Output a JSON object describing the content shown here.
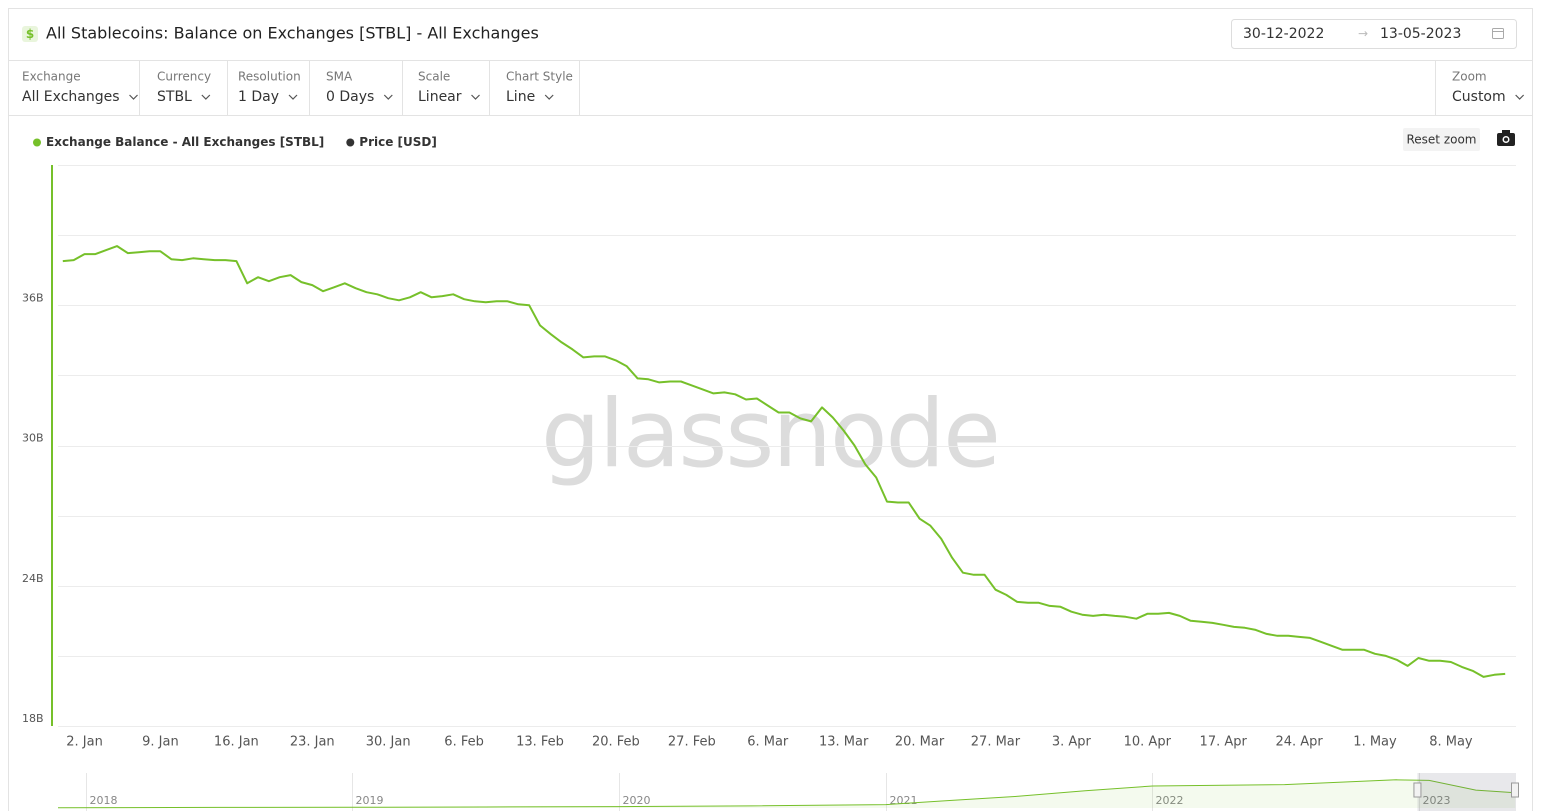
{
  "header": {
    "title": "All Stablecoins: Balance on Exchanges [STBL] - All Exchanges",
    "date_from": "30-12-2022",
    "date_to": "13-05-2023"
  },
  "controls": [
    {
      "label": "Exchange",
      "value": "All Exchanges"
    },
    {
      "label": "Currency",
      "value": "STBL"
    },
    {
      "label": "Resolution",
      "value": "1 Day"
    },
    {
      "label": "SMA",
      "value": "0 Days"
    },
    {
      "label": "Scale",
      "value": "Linear"
    },
    {
      "label": "Chart Style",
      "value": "Line"
    },
    {
      "label": "Zoom",
      "value": "Custom"
    }
  ],
  "reset_zoom": "Reset zoom",
  "watermark": "glassnode",
  "chart_data": {
    "type": "line",
    "x": [
      "2022-12-31",
      "2023-01-01",
      "2023-01-02",
      "2023-01-03",
      "2023-01-04",
      "2023-01-05",
      "2023-01-06",
      "2023-01-07",
      "2023-01-08",
      "2023-01-09",
      "2023-01-10",
      "2023-01-11",
      "2023-01-12",
      "2023-01-13",
      "2023-01-14",
      "2023-01-15",
      "2023-01-16",
      "2023-01-17",
      "2023-01-18",
      "2023-01-19",
      "2023-01-20",
      "2023-01-21",
      "2023-01-22",
      "2023-01-23",
      "2023-01-24",
      "2023-01-25",
      "2023-01-26",
      "2023-01-27",
      "2023-01-28",
      "2023-01-29",
      "2023-01-30",
      "2023-01-31",
      "2023-02-01",
      "2023-02-02",
      "2023-02-03",
      "2023-02-04",
      "2023-02-05",
      "2023-02-06",
      "2023-02-07",
      "2023-02-08",
      "2023-02-09",
      "2023-02-10",
      "2023-02-11",
      "2023-02-12",
      "2023-02-13",
      "2023-02-14",
      "2023-02-15",
      "2023-02-16",
      "2023-02-17",
      "2023-02-18",
      "2023-02-19",
      "2023-02-20",
      "2023-02-21",
      "2023-02-22",
      "2023-02-23",
      "2023-02-24",
      "2023-02-25",
      "2023-02-26",
      "2023-02-27",
      "2023-02-28",
      "2023-03-01",
      "2023-03-02",
      "2023-03-03",
      "2023-03-04",
      "2023-03-05",
      "2023-03-06",
      "2023-03-07",
      "2023-03-08",
      "2023-03-09",
      "2023-03-10",
      "2023-03-11",
      "2023-03-12",
      "2023-03-13",
      "2023-03-14",
      "2023-03-15",
      "2023-03-16",
      "2023-03-17",
      "2023-03-18",
      "2023-03-19",
      "2023-03-20",
      "2023-03-21",
      "2023-03-22",
      "2023-03-23",
      "2023-03-24",
      "2023-03-25",
      "2023-03-26",
      "2023-03-27",
      "2023-03-28",
      "2023-03-29",
      "2023-03-30",
      "2023-03-31",
      "2023-04-01",
      "2023-04-02",
      "2023-04-03",
      "2023-04-04",
      "2023-04-05",
      "2023-04-06",
      "2023-04-07",
      "2023-04-08",
      "2023-04-09",
      "2023-04-10",
      "2023-04-11",
      "2023-04-12",
      "2023-04-13",
      "2023-04-14",
      "2023-04-15",
      "2023-04-16",
      "2023-04-17",
      "2023-04-18",
      "2023-04-19",
      "2023-04-20",
      "2023-04-21",
      "2023-04-22",
      "2023-04-23",
      "2023-04-24",
      "2023-04-25",
      "2023-04-26",
      "2023-04-27",
      "2023-04-28",
      "2023-04-29",
      "2023-04-30",
      "2023-05-01",
      "2023-05-02",
      "2023-05-03",
      "2023-05-04",
      "2023-05-05",
      "2023-05-06",
      "2023-05-07",
      "2023-05-08",
      "2023-05-09",
      "2023-05-10",
      "2023-05-11",
      "2023-05-12",
      "2023-05-13"
    ],
    "series": [
      {
        "name": "Exchange Balance - All Exchanges [STBL]",
        "color": "#76c02a",
        "values": [
          37.89,
          37.93,
          38.19,
          38.19,
          38.36,
          38.53,
          38.23,
          38.27,
          38.31,
          38.31,
          37.97,
          37.93,
          38.01,
          37.97,
          37.93,
          37.93,
          37.89,
          36.94,
          37.2,
          37.03,
          37.2,
          37.29,
          36.99,
          36.86,
          36.6,
          36.77,
          36.94,
          36.73,
          36.56,
          36.47,
          36.3,
          36.21,
          36.34,
          36.56,
          36.34,
          36.39,
          36.47,
          36.26,
          36.17,
          36.13,
          36.17,
          36.17,
          36.04,
          36.0,
          35.14,
          34.76,
          34.41,
          34.11,
          33.77,
          33.81,
          33.81,
          33.64,
          33.39,
          32.87,
          32.83,
          32.7,
          32.74,
          32.74,
          32.57,
          32.4,
          32.23,
          32.27,
          32.19,
          31.97,
          32.01,
          31.71,
          31.41,
          31.41,
          31.16,
          31.03,
          31.63,
          31.2,
          30.64,
          30.0,
          29.19,
          28.63,
          27.6,
          27.56,
          27.56,
          26.87,
          26.57,
          26.01,
          25.2,
          24.56,
          24.47,
          24.47,
          23.83,
          23.61,
          23.31,
          23.27,
          23.27,
          23.14,
          23.1,
          22.89,
          22.76,
          22.71,
          22.76,
          22.71,
          22.67,
          22.59,
          22.8,
          22.8,
          22.84,
          22.71,
          22.5,
          22.46,
          22.41,
          22.33,
          22.24,
          22.2,
          22.11,
          21.94,
          21.86,
          21.86,
          21.81,
          21.77,
          21.6,
          21.43,
          21.26,
          21.26,
          21.26,
          21.09,
          21.0,
          20.83,
          20.57,
          20.91,
          20.79,
          20.79,
          20.74,
          20.53,
          20.36,
          20.1,
          20.19,
          20.23
        ]
      },
      {
        "name": "Price [USD]",
        "color": "#333333",
        "visible": false
      }
    ],
    "xlim": [
      "2022-12-30",
      "2023-05-14"
    ],
    "xticks": [
      {
        "value": "2023-01-02",
        "label": "2. Jan"
      },
      {
        "value": "2023-01-09",
        "label": "9. Jan"
      },
      {
        "value": "2023-01-16",
        "label": "16. Jan"
      },
      {
        "value": "2023-01-23",
        "label": "23. Jan"
      },
      {
        "value": "2023-01-30",
        "label": "30. Jan"
      },
      {
        "value": "2023-02-06",
        "label": "6. Feb"
      },
      {
        "value": "2023-02-13",
        "label": "13. Feb"
      },
      {
        "value": "2023-02-20",
        "label": "20. Feb"
      },
      {
        "value": "2023-02-27",
        "label": "27. Feb"
      },
      {
        "value": "2023-03-06",
        "label": "6. Mar"
      },
      {
        "value": "2023-03-13",
        "label": "13. Mar"
      },
      {
        "value": "2023-03-20",
        "label": "20. Mar"
      },
      {
        "value": "2023-03-27",
        "label": "27. Mar"
      },
      {
        "value": "2023-04-03",
        "label": "3. Apr"
      },
      {
        "value": "2023-04-10",
        "label": "10. Apr"
      },
      {
        "value": "2023-04-17",
        "label": "17. Apr"
      },
      {
        "value": "2023-04-24",
        "label": "24. Apr"
      },
      {
        "value": "2023-05-01",
        "label": "1. May"
      },
      {
        "value": "2023-05-08",
        "label": "8. May"
      }
    ],
    "ylim": [
      18,
      42
    ],
    "yticks": [
      {
        "value": 18,
        "label": "18B"
      },
      {
        "value": 24,
        "label": "24B"
      },
      {
        "value": 30,
        "label": "30B"
      },
      {
        "value": 36,
        "label": "36B"
      }
    ],
    "ygrid": [
      18,
      21,
      24,
      27,
      30,
      33,
      36,
      39,
      42
    ],
    "grid": true,
    "legend": "top-left",
    "navigator": {
      "x": [
        "2017-11-24",
        "2018-07-01",
        "2019-01-01",
        "2019-07-01",
        "2020-01-01",
        "2020-07-01",
        "2021-01-01",
        "2021-04-01",
        "2021-07-01",
        "2021-10-01",
        "2022-01-01",
        "2022-07-01",
        "2022-12-01",
        "2023-01-15",
        "2023-03-20",
        "2023-05-13"
      ],
      "values": [
        0.5,
        0.8,
        1,
        1.5,
        2,
        3,
        5,
        11,
        17,
        25,
        32,
        34,
        41,
        40,
        26,
        22
      ],
      "xlim": [
        "2017-11-24",
        "2023-05-14"
      ],
      "ylim": [
        0,
        45
      ],
      "ticks": [
        {
          "value": "2018-01-01",
          "label": "2018"
        },
        {
          "value": "2019-01-01",
          "label": "2019"
        },
        {
          "value": "2020-01-01",
          "label": "2020"
        },
        {
          "value": "2021-01-01",
          "label": "2021"
        },
        {
          "value": "2022-01-01",
          "label": "2022"
        },
        {
          "value": "2023-01-01",
          "label": "2023"
        }
      ]
    }
  }
}
